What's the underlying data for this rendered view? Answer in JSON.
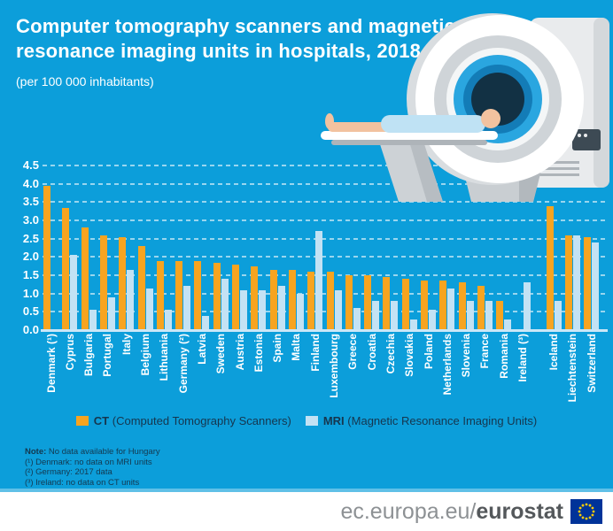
{
  "title": {
    "line1": "Computer tomography scanners and magnetic",
    "line2": "resonance imaging units in hospitals, 2018",
    "subtitle": "(per 100 000 inhabitants)"
  },
  "legend": {
    "ct_bold": "CT",
    "ct_rest": " (Computed Tomography Scanners)",
    "mri_bold": "MRI",
    "mri_rest": " (Magnetic Resonance Imaging Units)"
  },
  "notes": {
    "lines": [
      {
        "bold": "Note:",
        "text": " No data available for Hungary"
      },
      {
        "bold": "",
        "text": "(¹) Denmark: no data on MRI units"
      },
      {
        "bold": "",
        "text": "(²) Germany: 2017 data"
      },
      {
        "bold": "",
        "text": "(³) Ireland: no data on CT units"
      }
    ]
  },
  "footer": {
    "url_regular": "ec.europa.eu/",
    "url_bold": "eurostat"
  },
  "colors": {
    "background": "#0C9EDA",
    "ct_orange": "#F7A420",
    "mri_blue": "#C3E2F4",
    "baseline": "#CBE7F7",
    "text_dark": "#16364E",
    "footer_gray": "#8D9194",
    "footer_dark": "#54585B",
    "eu_flag_blue": "#003399",
    "eu_flag_yellow": "#FFCC00"
  },
  "chart_data": {
    "type": "bar",
    "title": "Computer tomography scanners and magnetic resonance imaging units in hospitals, 2018",
    "subtitle": "(per 100 000 inhabitants)",
    "categories": [
      "Denmark (¹)",
      "Cyprus",
      "Bulgaria",
      "Portugal",
      "Italy",
      "Belgium",
      "Lithuania",
      "Germany (²)",
      "Latvia",
      "Sweden",
      "Austria",
      "Estonia",
      "Spain",
      "Malta",
      "Finland",
      "Luxembourg",
      "Greece",
      "Croatia",
      "Czechia",
      "Slovakia",
      "Poland",
      "Netherlands",
      "Slovenia",
      "France",
      "Romania",
      "Ireland (³)",
      "Iceland",
      "Liechtenstein",
      "Switzerland"
    ],
    "series": [
      {
        "name": "CT",
        "label": "CT (Computed Tomography Scanners)",
        "color": "#F7A420",
        "values": [
          3.95,
          3.35,
          2.8,
          2.6,
          2.55,
          2.3,
          1.9,
          1.9,
          1.9,
          1.85,
          1.8,
          1.75,
          1.65,
          1.65,
          1.6,
          1.6,
          1.5,
          1.5,
          1.45,
          1.4,
          1.35,
          1.35,
          1.3,
          1.2,
          0.8,
          null,
          3.4,
          2.6,
          2.55
        ]
      },
      {
        "name": "MRI",
        "label": "MRI (Magnetic Resonance Imaging Units)",
        "color": "#C3E2F4",
        "values": [
          null,
          2.05,
          0.55,
          0.9,
          1.65,
          1.15,
          0.55,
          1.2,
          0.4,
          1.4,
          1.1,
          1.1,
          1.2,
          1.0,
          2.7,
          1.1,
          0.6,
          0.8,
          0.8,
          0.3,
          0.55,
          1.15,
          0.8,
          0.8,
          0.3,
          1.3,
          0.8,
          2.6,
          2.4
        ]
      }
    ],
    "ylim": [
      0,
      4.5
    ],
    "ytick_step": 0.5,
    "grid": "horizontal-dashed-white",
    "legend_position": "bottom",
    "gap_after_category_index": 25
  }
}
